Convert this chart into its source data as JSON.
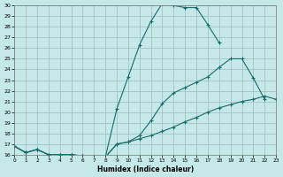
{
  "xlabel": "Humidex (Indice chaleur)",
  "bg_color": "#c5e8e8",
  "grid_color": "#9bbcbc",
  "line_color": "#1a6b6b",
  "ylim": [
    16,
    30
  ],
  "xlim": [
    0,
    23
  ],
  "yticks": [
    16,
    17,
    18,
    19,
    20,
    21,
    22,
    23,
    24,
    25,
    26,
    27,
    28,
    29,
    30
  ],
  "xticks": [
    0,
    1,
    2,
    3,
    4,
    5,
    6,
    7,
    8,
    9,
    10,
    11,
    12,
    13,
    14,
    15,
    16,
    17,
    18,
    19,
    20,
    21,
    22,
    23
  ],
  "lines": [
    {
      "x": [
        0,
        1,
        2,
        3,
        4,
        5,
        6,
        7,
        8,
        9,
        10,
        11,
        12,
        13,
        14,
        15,
        16,
        17,
        18
      ],
      "y": [
        16.8,
        16.2,
        16.5,
        16.0,
        16.0,
        16.0,
        15.9,
        15.8,
        15.8,
        20.3,
        23.3,
        26.3,
        28.5,
        30.2,
        30.0,
        29.8,
        29.8,
        28.2,
        26.5
      ]
    },
    {
      "x": [
        0,
        1,
        2,
        3,
        4,
        5,
        6,
        7,
        8,
        9,
        10,
        11,
        12,
        13,
        14,
        15,
        16,
        17,
        18,
        19,
        20,
        21,
        22
      ],
      "y": [
        16.8,
        16.2,
        16.5,
        16.0,
        16.0,
        16.0,
        15.9,
        15.8,
        15.8,
        17.0,
        17.2,
        17.8,
        19.2,
        20.8,
        21.8,
        22.3,
        22.8,
        23.3,
        24.2,
        25.0,
        25.0,
        23.2,
        21.2
      ]
    },
    {
      "x": [
        0,
        1,
        2,
        3,
        4,
        5,
        6,
        7,
        8,
        9,
        10,
        11,
        12,
        13,
        14,
        15,
        16,
        17,
        18,
        19,
        20,
        21,
        22,
        23
      ],
      "y": [
        16.8,
        16.2,
        16.5,
        16.0,
        16.0,
        16.0,
        15.9,
        15.8,
        15.8,
        17.0,
        17.2,
        17.5,
        17.8,
        18.2,
        18.6,
        19.1,
        19.5,
        20.0,
        20.4,
        20.7,
        21.0,
        21.2,
        21.5,
        21.2
      ]
    }
  ]
}
